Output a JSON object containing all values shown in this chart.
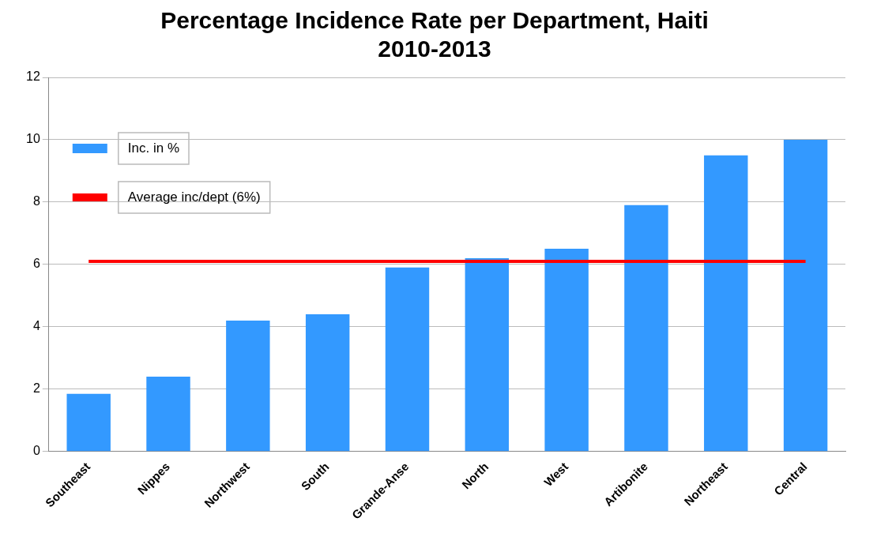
{
  "chart_data": {
    "type": "bar",
    "title": "Percentage Incidence Rate per Department, Haiti\n2010-2013",
    "categories": [
      "Southeast",
      "Nippes",
      "Northwest",
      "South",
      "Grande-Anse",
      "North",
      "West",
      "Artibonite",
      "Northeast",
      "Central"
    ],
    "series": [
      {
        "name": "Inc. in %",
        "color": "#3399ff",
        "values": [
          1.85,
          2.4,
          4.2,
          4.4,
          5.9,
          6.2,
          6.5,
          7.9,
          9.5,
          10.0
        ]
      },
      {
        "name": "Average inc/dept (6%)",
        "type": "line",
        "color": "#ff0000",
        "values": [
          6.1,
          6.1,
          6.1,
          6.1,
          6.1,
          6.1,
          6.1,
          6.1,
          6.1,
          6.1
        ]
      }
    ],
    "ylim": [
      0,
      12
    ],
    "yticks": [
      0,
      2,
      4,
      6,
      8,
      10,
      12
    ],
    "grid": "y",
    "legend": "top left",
    "marker": "none"
  }
}
